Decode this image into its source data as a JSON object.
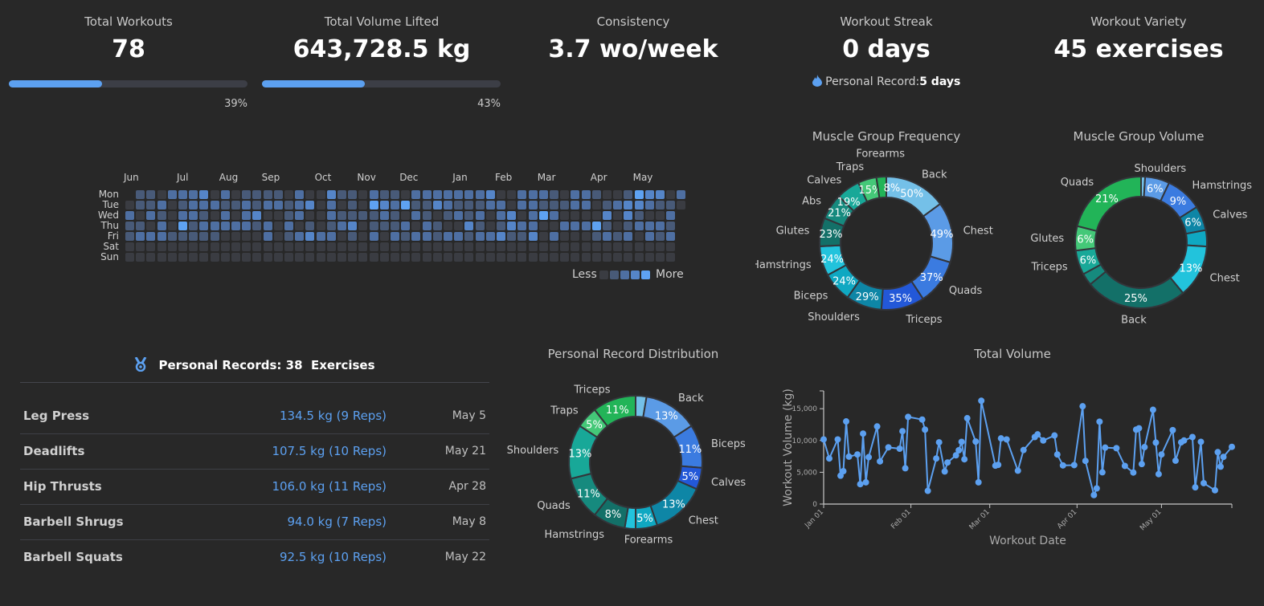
{
  "stats": {
    "total_workouts": {
      "title": "Total Workouts",
      "value": "78",
      "progress": 39,
      "progress_label": "39%"
    },
    "total_volume": {
      "title": "Total Volume Lifted",
      "value": "643,728.5 kg",
      "progress": 43,
      "progress_label": "43%"
    },
    "consistency": {
      "title": "Consistency",
      "value": "3.7 wo/week"
    },
    "streak": {
      "title": "Workout Streak",
      "value": "0 days",
      "record_label": "Personal Record:",
      "record_value": "5 days",
      "icon": "fire-icon"
    },
    "variety": {
      "title": "Workout Variety",
      "value": "45 exercises"
    }
  },
  "heatmap": {
    "days": [
      "Mon",
      "Tue",
      "Wed",
      "Thu",
      "Fri",
      "Sat",
      "Sun"
    ],
    "months": [
      {
        "label": "Jun",
        "week": 0
      },
      {
        "label": "Jul",
        "week": 5
      },
      {
        "label": "Aug",
        "week": 9
      },
      {
        "label": "Sep",
        "week": 13
      },
      {
        "label": "Oct",
        "week": 18
      },
      {
        "label": "Nov",
        "week": 22
      },
      {
        "label": "Dec",
        "week": 26
      },
      {
        "label": "Jan",
        "week": 31
      },
      {
        "label": "Feb",
        "week": 35
      },
      {
        "label": "Mar",
        "week": 39
      },
      {
        "label": "Apr",
        "week": 44
      },
      {
        "label": "May",
        "week": 48
      }
    ],
    "levels": [
      ".1102223020111102003110211022222223002221022100143302",
      "01120122211212212302010432411321112202211122012332110",
      "2021022102023001200211112102101212023024200003031002.",
      "1102041222221202010123011120210031013220022241012221.",
      "1222111110000201232201020212212212231130200012120212.",
      "0000000000000000000000000000000000000000000000000000.",
      "0000000000000000000000000000000000000000000000000000."
    ],
    "level_colors": [
      "#3a3c42",
      "#485a78",
      "#4e6fa2",
      "#5585c8",
      "#5ea2f2"
    ],
    "legend_less": "Less",
    "legend_more": "More"
  },
  "muscle_frequency": {
    "title": "Muscle Group Frequency",
    "slices": [
      {
        "label": "Back",
        "value": 50,
        "pct": "50%",
        "color": "#74c0e8"
      },
      {
        "label": "Chest",
        "value": 49,
        "pct": "49%",
        "color": "#5b9be6"
      },
      {
        "label": "Quads",
        "value": 37,
        "pct": "37%",
        "color": "#3b7be0"
      },
      {
        "label": "Triceps",
        "value": 35,
        "pct": "35%",
        "color": "#2358d8"
      },
      {
        "label": "Shoulders",
        "value": 29,
        "pct": "29%",
        "color": "#0e86a6"
      },
      {
        "label": "Biceps",
        "value": 24,
        "pct": "24%",
        "color": "#0fa8c2"
      },
      {
        "label": "Hamstrings",
        "value": 24,
        "pct": "24%",
        "color": "#22c3dc"
      },
      {
        "label": "Glutes",
        "value": 23,
        "pct": "23%",
        "color": "#137068"
      },
      {
        "label": "Abs",
        "value": 21,
        "pct": "21%",
        "color": "#168a7e"
      },
      {
        "label": "Calves",
        "value": 19,
        "pct": "19%",
        "color": "#18a898"
      },
      {
        "label": "Traps",
        "value": 15,
        "pct": "15%",
        "color": "#44c878"
      },
      {
        "label": "Forearms",
        "value": 8,
        "pct": "8%",
        "color": "#22b458"
      }
    ]
  },
  "muscle_volume": {
    "title": "Muscle Group Volume",
    "slices": [
      {
        "label": "",
        "value": 1,
        "pct": "",
        "color": "#74c0e8"
      },
      {
        "label": "Shoulders",
        "value": 6,
        "pct": "6%",
        "color": "#5b9be6"
      },
      {
        "label": "Hamstrings",
        "value": 9,
        "pct": "9%",
        "color": "#3b7be0"
      },
      {
        "label": "Calves",
        "value": 6,
        "pct": "6%",
        "color": "#0e86a6"
      },
      {
        "label": "",
        "value": 4,
        "pct": "",
        "color": "#0fa8c2"
      },
      {
        "label": "Chest",
        "value": 13,
        "pct": "13%",
        "color": "#22c3dc"
      },
      {
        "label": "Back",
        "value": 25,
        "pct": "25%",
        "color": "#137068"
      },
      {
        "label": "",
        "value": 3,
        "pct": "",
        "color": "#168a7e"
      },
      {
        "label": "Triceps",
        "value": 6,
        "pct": "6%",
        "color": "#18a898"
      },
      {
        "label": "Glutes",
        "value": 6,
        "pct": "6%",
        "color": "#44c878"
      },
      {
        "label": "Quads",
        "value": 21,
        "pct": "21%",
        "color": "#22b458"
      }
    ]
  },
  "pr_distribution": {
    "title": "Personal Record Distribution",
    "slices": [
      {
        "label": "",
        "value": 1,
        "pct": "",
        "color": "#74c0e8"
      },
      {
        "label": "Back",
        "value": 5,
        "pct": "13%",
        "color": "#5b9be6"
      },
      {
        "label": "Biceps",
        "value": 4,
        "pct": "11%",
        "color": "#3b7be0"
      },
      {
        "label": "Calves",
        "value": 2,
        "pct": "5%",
        "color": "#2358d8"
      },
      {
        "label": "Chest",
        "value": 5,
        "pct": "13%",
        "color": "#0e86a6"
      },
      {
        "label": "Forearms",
        "value": 2,
        "pct": "5%",
        "color": "#0fa8c2"
      },
      {
        "label": "",
        "value": 1,
        "pct": "",
        "color": "#22c3dc"
      },
      {
        "label": "Hamstrings",
        "value": 3,
        "pct": "8%",
        "color": "#137068"
      },
      {
        "label": "Quads",
        "value": 4,
        "pct": "11%",
        "color": "#168a7e"
      },
      {
        "label": "Shoulders",
        "value": 5,
        "pct": "13%",
        "color": "#18a898"
      },
      {
        "label": "Traps",
        "value": 2,
        "pct": "5%",
        "color": "#44c878"
      },
      {
        "label": "Triceps",
        "value": 4,
        "pct": "11%",
        "color": "#22b458"
      }
    ]
  },
  "personal_records": {
    "header_label": "Personal Records:",
    "count": "38",
    "count_suffix": "Exercises",
    "icon": "medal-icon",
    "rows": [
      {
        "name": "Leg Press",
        "weight": "134.5 kg (9 Reps)",
        "date": "May 5"
      },
      {
        "name": "Deadlifts",
        "weight": "107.5 kg (10 Reps)",
        "date": "May 21"
      },
      {
        "name": "Hip Thrusts",
        "weight": "106.0 kg (11 Reps)",
        "date": "Apr 28"
      },
      {
        "name": "Barbell Shrugs",
        "weight": "94.0 kg (7 Reps)",
        "date": "May 8"
      },
      {
        "name": "Barbell Squats",
        "weight": "92.5 kg (10 Reps)",
        "date": "May 22"
      }
    ]
  },
  "chart_data": {
    "type": "line",
    "title": "Total Volume",
    "xlabel": "Workout Date",
    "ylabel": "Workout Volume (kg)",
    "xlim": [
      "Jan 01",
      "May 26"
    ],
    "ylim": [
      0,
      17800
    ],
    "x_ticks": [
      "Jan 01",
      "Feb 01",
      "Mar 01",
      "Apr 01",
      "May 01"
    ],
    "y_ticks": [
      "0",
      "5,000",
      "10,000",
      "15,000"
    ],
    "y_tick_values": [
      0,
      5000,
      10000,
      15000
    ],
    "color": "#5ca0f0",
    "grid": false,
    "points": [
      [
        "Jan 01",
        10170
      ],
      [
        "Jan 03",
        7170
      ],
      [
        "Jan 06",
        10170
      ],
      [
        "Jan 07",
        4460
      ],
      [
        "Jan 08",
        5170
      ],
      [
        "Jan 09",
        13000
      ],
      [
        "Jan 10",
        7460
      ],
      [
        "Jan 13",
        7800
      ],
      [
        "Jan 14",
        3130
      ],
      [
        "Jan 15",
        11080
      ],
      [
        "Jan 16",
        3420
      ],
      [
        "Jan 17",
        7380
      ],
      [
        "Jan 20",
        12210
      ],
      [
        "Jan 21",
        6710
      ],
      [
        "Jan 24",
        8920
      ],
      [
        "Jan 28",
        8710
      ],
      [
        "Jan 29",
        11460
      ],
      [
        "Jan 30",
        5630
      ],
      [
        "Jan 31",
        13710
      ],
      [
        "Feb 05",
        13290
      ],
      [
        "Feb 06",
        11710
      ],
      [
        "Feb 07",
        2080
      ],
      [
        "Feb 10",
        7170
      ],
      [
        "Feb 11",
        9710
      ],
      [
        "Feb 13",
        5130
      ],
      [
        "Feb 14",
        6540
      ],
      [
        "Feb 17",
        7670
      ],
      [
        "Feb 18",
        8460
      ],
      [
        "Feb 19",
        9790
      ],
      [
        "Feb 20",
        7040
      ],
      [
        "Feb 21",
        13500
      ],
      [
        "Feb 24",
        9830
      ],
      [
        "Feb 25",
        3420
      ],
      [
        "Feb 26",
        16250
      ],
      [
        "Mar 03",
        6040
      ],
      [
        "Mar 04",
        6170
      ],
      [
        "Mar 05",
        10330
      ],
      [
        "Mar 07",
        10170
      ],
      [
        "Mar 11",
        5250
      ],
      [
        "Mar 13",
        8500
      ],
      [
        "Mar 17",
        10540
      ],
      [
        "Mar 18",
        10960
      ],
      [
        "Mar 20",
        10000
      ],
      [
        "Mar 24",
        10790
      ],
      [
        "Mar 25",
        7800
      ],
      [
        "Mar 27",
        6080
      ],
      [
        "Mar 31",
        6130
      ],
      [
        "Apr 03",
        15380
      ],
      [
        "Apr 04",
        6790
      ],
      [
        "Apr 07",
        1420
      ],
      [
        "Apr 08",
        2460
      ],
      [
        "Apr 09",
        12960
      ],
      [
        "Apr 10",
        5000
      ],
      [
        "Apr 11",
        8880
      ],
      [
        "Apr 15",
        8790
      ],
      [
        "Apr 18",
        6000
      ],
      [
        "Apr 21",
        4960
      ],
      [
        "Apr 22",
        11710
      ],
      [
        "Apr 23",
        11920
      ],
      [
        "Apr 24",
        6290
      ],
      [
        "Apr 25",
        8960
      ],
      [
        "Apr 28",
        14830
      ],
      [
        "Apr 29",
        9670
      ],
      [
        "Apr 30",
        4710
      ],
      [
        "May 01",
        7800
      ],
      [
        "May 05",
        11630
      ],
      [
        "May 06",
        6830
      ],
      [
        "May 08",
        9710
      ],
      [
        "May 09",
        10000
      ],
      [
        "May 12",
        10540
      ],
      [
        "May 13",
        2630
      ],
      [
        "May 15",
        9790
      ],
      [
        "May 16",
        3290
      ],
      [
        "May 20",
        2170
      ],
      [
        "May 21",
        8170
      ],
      [
        "May 22",
        5880
      ],
      [
        "May 23",
        7420
      ],
      [
        "May 26",
        9000
      ]
    ]
  }
}
